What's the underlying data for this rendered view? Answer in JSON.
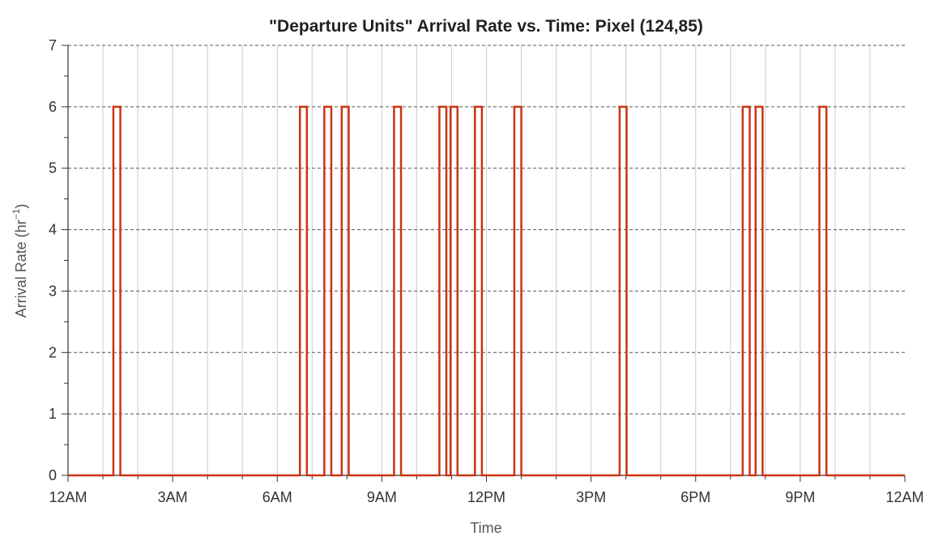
{
  "chart_data": {
    "type": "line",
    "title": "\"Departure Units\" Arrival Rate vs. Time: Pixel (124,85)",
    "xlabel": "Time",
    "ylabel": "Arrival Rate (hr",
    "ylabel_sup": "−1",
    "ylabel_close": ")",
    "xlim": [
      0,
      24
    ],
    "ylim": [
      0,
      7
    ],
    "x_ticks": [
      0,
      3,
      6,
      9,
      12,
      15,
      18,
      21,
      24
    ],
    "x_tick_labels": [
      "12AM",
      "3AM",
      "6AM",
      "9AM",
      "12PM",
      "3PM",
      "6PM",
      "9PM",
      "12AM"
    ],
    "y_ticks": [
      0,
      1,
      2,
      3,
      4,
      5,
      6,
      7
    ],
    "y_tick_labels": [
      "0",
      "1",
      "2",
      "3",
      "4",
      "5",
      "6",
      "7"
    ],
    "x_minor_step": 1,
    "y_minor_step": 0.5,
    "grid": true,
    "series": [
      {
        "color": "#cc3311",
        "baseline": 0,
        "pulse_value": 6,
        "pulses": [
          [
            1.3,
            1.5
          ],
          [
            6.65,
            6.85
          ],
          [
            7.35,
            7.55
          ],
          [
            7.85,
            8.05
          ],
          [
            9.35,
            9.55
          ],
          [
            10.65,
            10.85
          ],
          [
            10.97,
            11.17
          ],
          [
            11.67,
            11.87
          ],
          [
            12.8,
            13.0
          ],
          [
            15.82,
            16.02
          ],
          [
            19.35,
            19.55
          ],
          [
            19.72,
            19.92
          ],
          [
            21.55,
            21.75
          ]
        ]
      }
    ]
  }
}
